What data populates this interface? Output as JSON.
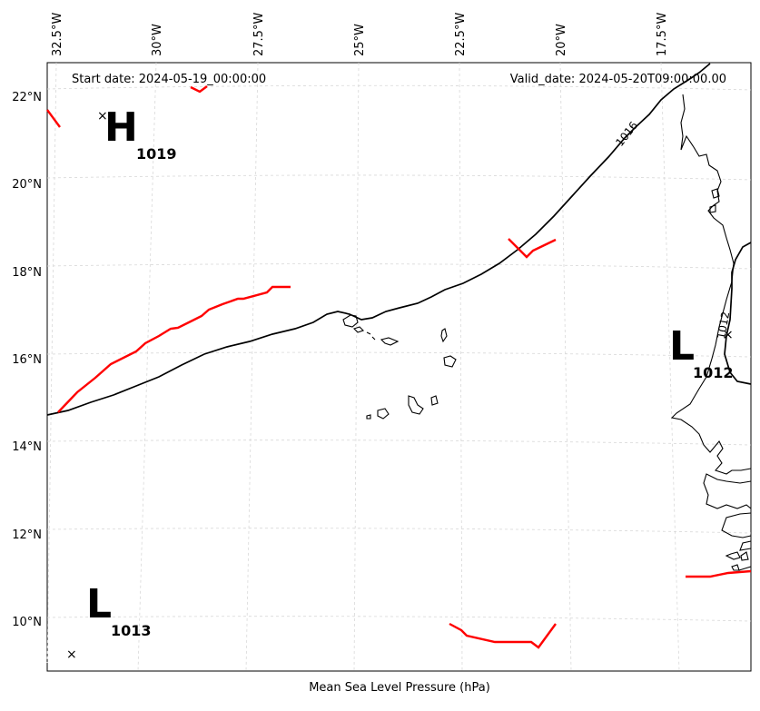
{
  "map": {
    "caption": "Mean Sea Level Pressure (hPa)",
    "start_date": "Start date: 2024-05-19_00:00:00",
    "valid_date": "Valid_date: 2024-05-20T09:00:00.00",
    "longitude_ticks": [
      "32.5°W",
      "30°W",
      "27.5°W",
      "25°W",
      "22.5°W",
      "20°W",
      "17.5°W"
    ],
    "latitude_ticks": [
      "22°N",
      "20°N",
      "18°N",
      "16°N",
      "14°N",
      "12°N",
      "10°N"
    ],
    "pressure_centers": [
      {
        "type": "H",
        "value": "1019"
      },
      {
        "type": "L",
        "value": "1012"
      },
      {
        "type": "L",
        "value": "1013"
      }
    ],
    "contour_labels": [
      "1016",
      "1012"
    ],
    "colors": {
      "isobar": "#000000",
      "front": "#ff0000",
      "coastline": "#000000",
      "gridline": "#d8d8d8"
    }
  }
}
